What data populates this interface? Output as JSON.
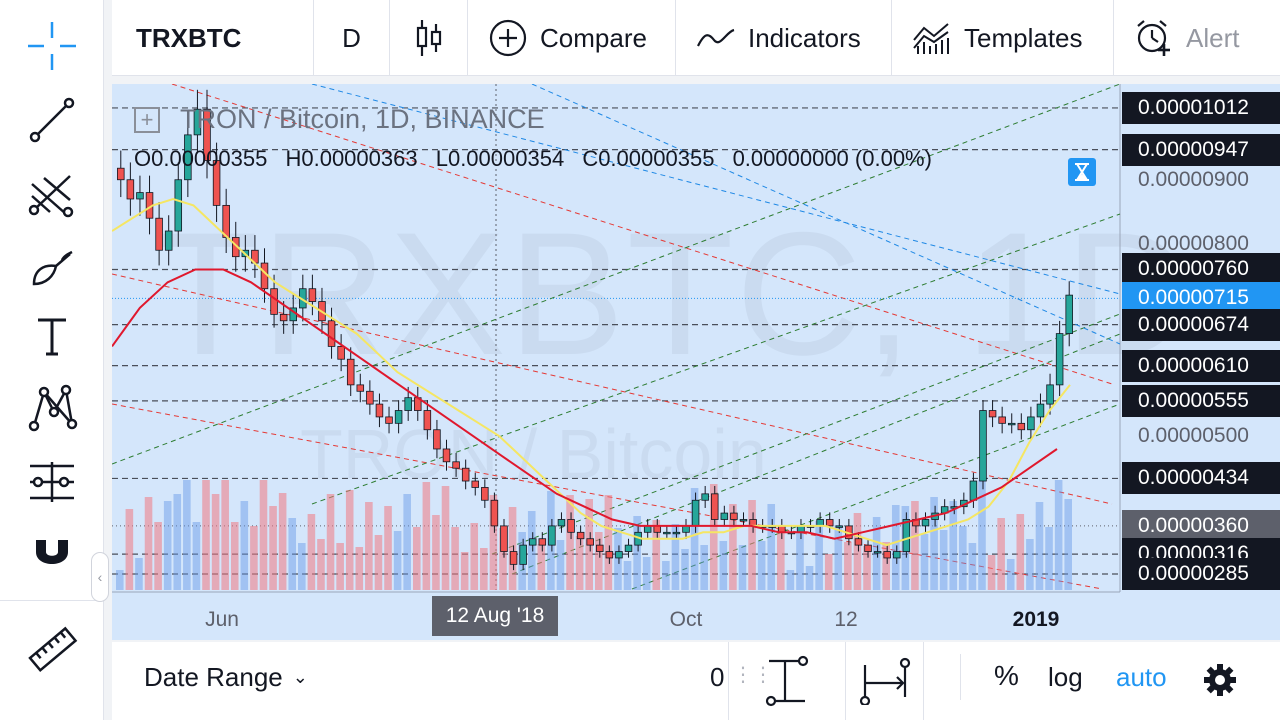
{
  "toolbar": {
    "symbol": "TRXBTC",
    "interval": "D",
    "compare_label": "Compare",
    "indicators_label": "Indicators",
    "templates_label": "Templates",
    "alert_label": "Alert"
  },
  "left_tools": [
    {
      "name": "crosshair-icon"
    },
    {
      "name": "trend-line-icon"
    },
    {
      "name": "pitchfork-icon"
    },
    {
      "name": "brush-icon"
    },
    {
      "name": "text-tool-icon"
    },
    {
      "name": "pattern-icon"
    },
    {
      "name": "prediction-measure-icon"
    },
    {
      "name": "magnet-icon"
    },
    {
      "name": "ruler-icon"
    }
  ],
  "legend": {
    "title": "TRON / Bitcoin, 1D, BINANCE",
    "open": "O0.00000355",
    "high": "H0.00000363",
    "low": "L0.00000354",
    "close": "C0.00000355",
    "change": "0.00000000 (0.00%)"
  },
  "watermark": {
    "big": "TRXBTC, 1D",
    "small": "TRON / Bitcoin"
  },
  "price_axis": [
    {
      "text": "0.00001012",
      "style": "black"
    },
    {
      "text": "0.00000947",
      "style": "black"
    },
    {
      "text": "0.00000900",
      "style": "plain"
    },
    {
      "text": "0.00000800",
      "style": "plain"
    },
    {
      "text": "0.00000760",
      "style": "black"
    },
    {
      "text": "0.00000715",
      "style": "blue"
    },
    {
      "text": "0.00000674",
      "style": "black"
    },
    {
      "text": "0.00000610",
      "style": "black"
    },
    {
      "text": "0.00000555",
      "style": "black"
    },
    {
      "text": "0.00000500",
      "style": "plain"
    },
    {
      "text": "0.00000434",
      "style": "black"
    },
    {
      "text": "0.00000360",
      "style": "grey"
    },
    {
      "text": "0.00000316",
      "style": "black"
    },
    {
      "text": "0.00000285",
      "style": "black"
    }
  ],
  "time_axis": [
    {
      "text": "Jun",
      "bold": false
    },
    {
      "text": "Oct",
      "bold": false
    },
    {
      "text": "12",
      "bold": false
    },
    {
      "text": "2019",
      "bold": true
    }
  ],
  "time_cursor": "12 Aug '18",
  "bottom": {
    "date_range_label": "Date Range",
    "zero_label": "0",
    "percent_label": "%",
    "log_label": "log",
    "auto_label": "auto"
  },
  "colors": {
    "chart_bg": "#d4e6fb",
    "up_candle": "#26a69a",
    "down_candle": "#ef5350",
    "ma_fast": "#f5e663",
    "ma_slow": "#e0182d",
    "accent": "#2196f3"
  },
  "chart_data": {
    "type": "candlestick",
    "symbol": "TRXBTC",
    "timeframe": "1D",
    "exchange": "BINANCE",
    "price_range": [
      2.6e-06,
      1.04e-05
    ],
    "close_series": [
      9e-06,
      8.7e-06,
      8.8e-06,
      8.4e-06,
      7.9e-06,
      8.2e-06,
      9e-06,
      9.7e-06,
      1.01e-05,
      9.3e-06,
      8.6e-06,
      8.1e-06,
      7.8e-06,
      7.9e-06,
      7.7e-06,
      7.3e-06,
      6.9e-06,
      6.8e-06,
      7e-06,
      7.3e-06,
      7.1e-06,
      6.8e-06,
      6.4e-06,
      6.2e-06,
      5.8e-06,
      5.7e-06,
      5.5e-06,
      5.3e-06,
      5.2e-06,
      5.4e-06,
      5.6e-06,
      5.4e-06,
      5.1e-06,
      4.8e-06,
      4.6e-06,
      4.5e-06,
      4.3e-06,
      4.2e-06,
      4e-06,
      3.6e-06,
      3.2e-06,
      3e-06,
      3.3e-06,
      3.4e-06,
      3.3e-06,
      3.6e-06,
      3.7e-06,
      3.5e-06,
      3.4e-06,
      3.3e-06,
      3.2e-06,
      3.1e-06,
      3.2e-06,
      3.3e-06,
      3.5e-06,
      3.6e-06,
      3.5e-06,
      3.5e-06,
      3.5e-06,
      3.6e-06,
      4e-06,
      4.1e-06,
      3.7e-06,
      3.8e-06,
      3.7e-06,
      3.7e-06,
      3.6e-06,
      3.6e-06,
      3.6e-06,
      3.5e-06,
      3.5e-06,
      3.6e-06,
      3.6e-06,
      3.7e-06,
      3.6e-06,
      3.6e-06,
      3.4e-06,
      3.3e-06,
      3.2e-06,
      3.2e-06,
      3.1e-06,
      3.2e-06,
      3.7e-06,
      3.6e-06,
      3.7e-06,
      3.8e-06,
      3.9e-06,
      3.9e-06,
      4e-06,
      4.3e-06,
      5.4e-06,
      5.3e-06,
      5.2e-06,
      5.2e-06,
      5.1e-06,
      5.3e-06,
      5.5e-06,
      5.8e-06,
      6.6e-06,
      7.2e-06
    ],
    "ma_fast": [
      8.2e-06,
      8.4e-06,
      8.6e-06,
      8.7e-06,
      8.6e-06,
      8.3e-06,
      8e-06,
      7.7e-06,
      7.4e-06,
      7.2e-06,
      7e-06,
      6.8e-06,
      6.6e-06,
      6.3e-06,
      6e-06,
      5.8e-06,
      5.6e-06,
      5.4e-06,
      5.2e-06,
      5e-06,
      4.7e-06,
      4.4e-06,
      4.1e-06,
      3.8e-06,
      3.6e-06,
      3.5e-06,
      3.4e-06,
      3.4e-06,
      3.4e-06,
      3.5e-06,
      3.5e-06,
      3.6e-06,
      3.6e-06,
      3.6e-06,
      3.6e-06,
      3.6e-06,
      3.5e-06,
      3.4e-06,
      3.3e-06,
      3.4e-06,
      3.5e-06,
      3.6e-06,
      3.7e-06,
      3.9e-06,
      4.3e-06,
      4.9e-06,
      5.4e-06,
      5.8e-06
    ],
    "ma_slow": [
      6.4e-06,
      7e-06,
      7.4e-06,
      7.6e-06,
      7.6e-06,
      7.4e-06,
      7.1e-06,
      6.8e-06,
      6.5e-06,
      6.2e-06,
      5.9e-06,
      5.6e-06,
      5.3e-06,
      5e-06,
      4.7e-06,
      4.4e-06,
      4.1e-06,
      3.9e-06,
      3.7e-06,
      3.6e-06,
      3.6e-06,
      3.6e-06,
      3.6e-06,
      3.6e-06,
      3.5e-06,
      3.5e-06,
      3.4e-06,
      3.5e-06,
      3.6e-06,
      3.7e-06,
      3.8e-06,
      4e-06,
      4.2e-06,
      4.5e-06,
      4.8e-06
    ],
    "horizontal_levels": [
      1.012e-05,
      9.47e-06,
      7.6e-06,
      6.74e-06,
      6.1e-06,
      5.55e-06,
      4.34e-06,
      3.16e-06,
      2.85e-06
    ],
    "last_price": 7.15e-06,
    "crosshair_price": 3.6e-06,
    "x_labels": [
      "Jun",
      "12 Aug '18",
      "Oct",
      "12",
      "2019"
    ]
  }
}
